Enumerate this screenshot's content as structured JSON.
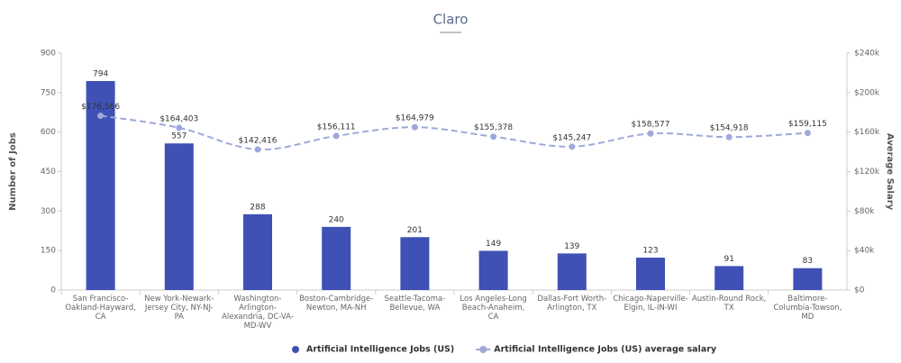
{
  "logo": "Claro",
  "chart_data": {
    "type": "bar-line",
    "categories": [
      "San Francisco-Oakland-Hayward, CA",
      "New York-Newark-Jersey City, NY-NJ-PA",
      "Washington-Arlington-Alexandria, DC-VA-MD-WV",
      "Boston-Cambridge-Newton, MA-NH",
      "Seattle-Tacoma-Bellevue, WA",
      "Los Angeles-Long Beach-Anaheim, CA",
      "Dallas-Fort Worth-Arlington, TX",
      "Chicago-Naperville-Elgin, IL-IN-WI",
      "Austin-Round Rock, TX",
      "Baltimore-Columbia-Towson, MD"
    ],
    "series": [
      {
        "name": "Artificial Intelligence Jobs (US)",
        "type": "bar",
        "color": "#3f51b5",
        "values": [
          794,
          557,
          288,
          240,
          201,
          149,
          139,
          123,
          91,
          83
        ]
      },
      {
        "name": "Artificial Intelligence Jobs (US) average salary",
        "type": "line",
        "axis": "y2",
        "color": "#9fa8da",
        "values": [
          176566,
          164403,
          142416,
          156111,
          164979,
          155378,
          145247,
          158577,
          154918,
          159115
        ],
        "value_labels": [
          "$176,566",
          "$164,403",
          "$142,416",
          "$156,111",
          "$164,979",
          "$155,378",
          "$145,247",
          "$158,577",
          "$154,918",
          "$159,115"
        ]
      }
    ],
    "ylabel": "Number of Jobs",
    "y2label": "Average Salary",
    "ylim": [
      0,
      900
    ],
    "yticks": [
      0,
      150,
      300,
      450,
      600,
      750,
      900
    ],
    "y2lim": [
      0,
      240000
    ],
    "y2ticks": [
      {
        "value": 0,
        "label": "$0"
      },
      {
        "value": 40000,
        "label": "$40k"
      },
      {
        "value": 80000,
        "label": "$80k"
      },
      {
        "value": 120000,
        "label": "$120k"
      },
      {
        "value": 160000,
        "label": "$160k"
      },
      {
        "value": 200000,
        "label": "$200k"
      },
      {
        "value": 240000,
        "label": "$240k"
      }
    ],
    "legend": "bottom"
  }
}
